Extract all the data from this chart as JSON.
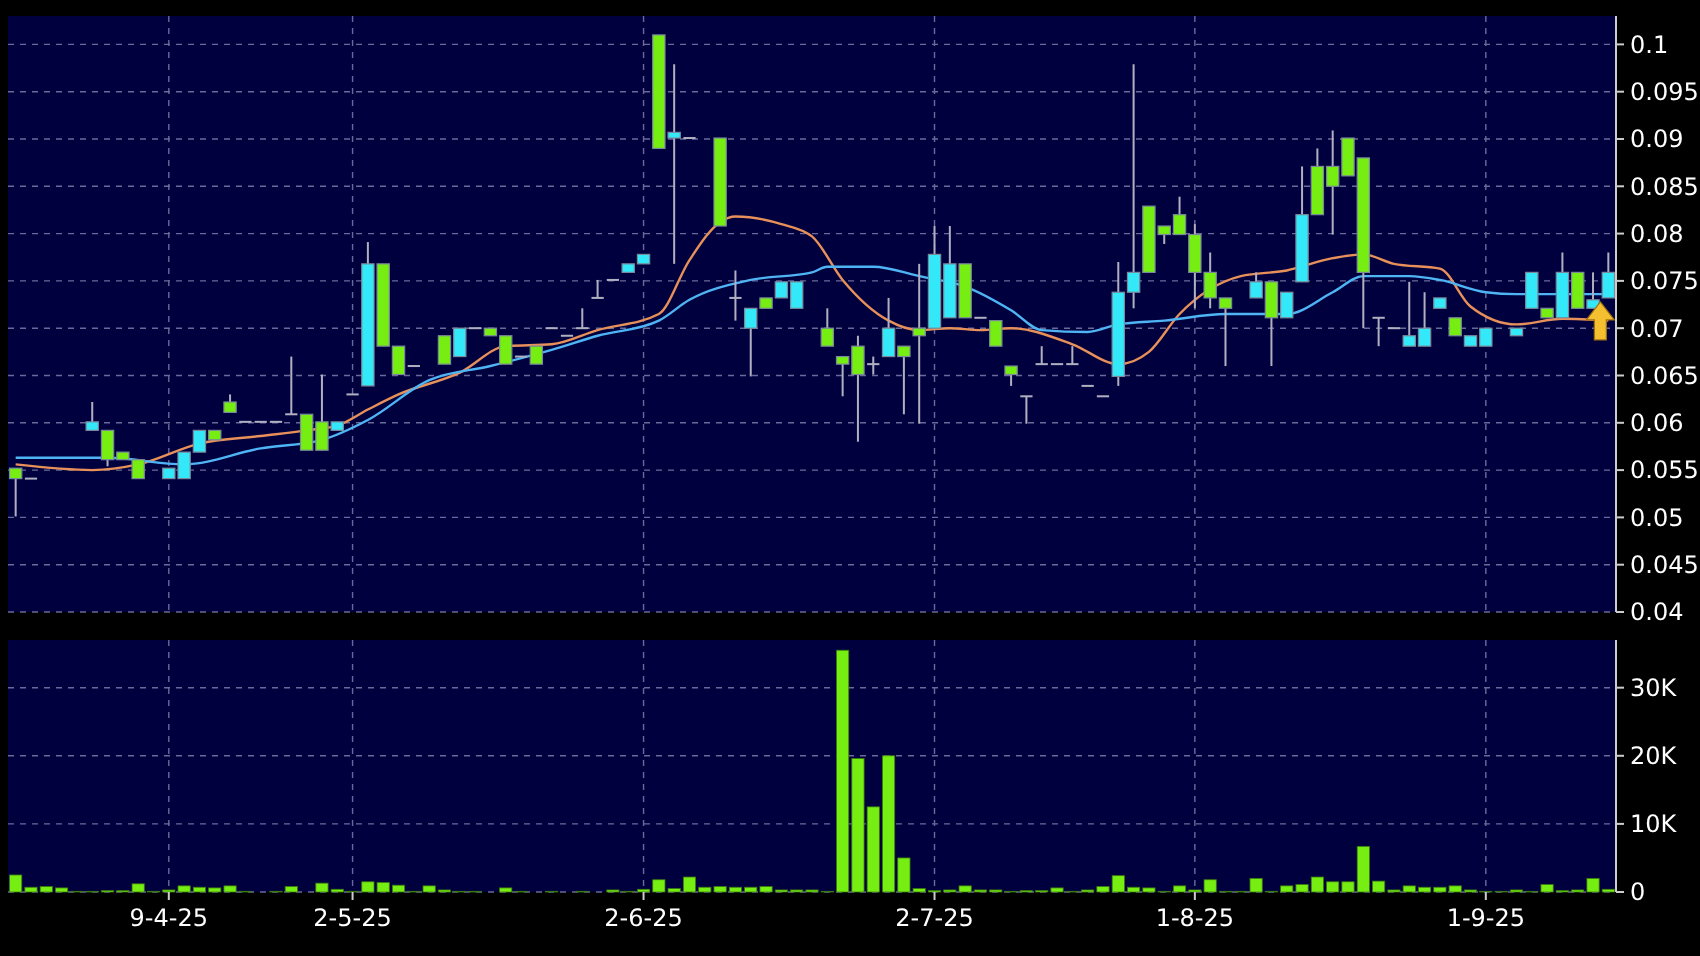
{
  "chart_data": [
    {
      "type": "candlestick",
      "tick_labels": "y",
      "grid": true,
      "colors": [
        "#77ee11",
        "#b0b0c0",
        null,
        null,
        null,
        "#33e8f8",
        "#77ee11",
        "#77ee11",
        "#77ee11",
        null,
        "#33e8f8",
        "#33e8f8",
        "#33e8f8",
        "#77ee11",
        "#77ee11",
        "#b0b0c0",
        "#b0b0c0",
        "#b0b0c0",
        "#b0b0c0",
        "#77ee11",
        "#77ee11",
        "#33e8f8",
        "#b0b0c0",
        "#33e8f8",
        "#77ee11",
        "#77ee11",
        "#b0b0c0",
        null,
        "#77ee11",
        "#33e8f8",
        "#b0b0c0",
        "#77ee11",
        "#77ee11",
        "#b0b0c0",
        "#77ee11",
        "#b0b0c0",
        "#b0b0c0",
        "#b0b0c0",
        "#b0b0c0",
        "#b0b0c0",
        "#33e8f8",
        "#33e8f8",
        "#77ee11",
        "#33e8f8",
        "#b0b0c0",
        null,
        "#77ee11",
        "#b0b0c0",
        "#33e8f8",
        "#77ee11",
        "#33e8f8",
        "#33e8f8",
        null,
        "#77ee11",
        "#77ee11",
        "#77ee11",
        "#b0b0c0",
        "#33e8f8",
        "#77ee11",
        "#77ee11",
        "#33e8f8",
        "#33e8f8",
        "#77ee11",
        "#b0b0c0",
        "#77ee11",
        "#77ee11",
        "#b0b0c0",
        "#b0b0c0",
        "#b0b0c0",
        "#b0b0c0",
        "#b0b0c0",
        "#b0b0c0",
        "#33e8f8",
        "#33e8f8",
        "#77ee11",
        "#77ee11",
        "#77ee11",
        "#77ee11",
        "#77ee11",
        "#77ee11",
        null,
        "#33e8f8",
        "#77ee11",
        "#33e8f8",
        "#33e8f8",
        "#77ee11",
        "#77ee11",
        "#77ee11",
        "#77ee11",
        "#b0b0c0",
        "#b0b0c0",
        "#33e8f8",
        "#33e8f8",
        "#33e8f8",
        "#77ee11",
        "#33e8f8",
        "#33e8f8",
        null,
        "#33e8f8",
        "#33e8f8",
        "#77ee11",
        "#33e8f8",
        "#77ee11",
        "#33e8f8",
        "#33e8f8"
      ],
      "categories": [
        null,
        null,
        null,
        null,
        null,
        null,
        null,
        null,
        null,
        null,
        null,
        null,
        null,
        null,
        null,
        null,
        null,
        null,
        null,
        null,
        null,
        null,
        null,
        null,
        null,
        null,
        null,
        null,
        null,
        null,
        null,
        null,
        null,
        null,
        null,
        null,
        null,
        null,
        null,
        null,
        null,
        null,
        null,
        null,
        null,
        null,
        null,
        null,
        null,
        null,
        null,
        null,
        null,
        null,
        null,
        null,
        null,
        null,
        null,
        null,
        null,
        null,
        null,
        null,
        null,
        null,
        null,
        null,
        null,
        null,
        null,
        null,
        null,
        null,
        null,
        null,
        null,
        null,
        null,
        null,
        null,
        null,
        null,
        null,
        null,
        null,
        null,
        null,
        null,
        null,
        null,
        null,
        null,
        null,
        null,
        null,
        null,
        null,
        null,
        null,
        null,
        null,
        null,
        null,
        null
      ],
      "ylim": [
        0.04,
        0.103
      ],
      "yticks": [
        0.04,
        0.045,
        0.05,
        0.055,
        0.06,
        0.065,
        0.07,
        0.075,
        0.08,
        0.085,
        0.09,
        0.095,
        0.1
      ],
      "ohlc": [
        [
          0.0552,
          0.0552,
          0.0501,
          0.0541
        ],
        [
          0.0541,
          0.0541,
          0.0541,
          0.0541
        ],
        null,
        null,
        null,
        [
          0.0592,
          0.0622,
          0.0592,
          0.0601
        ],
        [
          0.0592,
          0.0592,
          0.0554,
          0.0561
        ],
        [
          0.0569,
          0.0569,
          0.0561,
          0.0561
        ],
        [
          0.0561,
          0.0561,
          0.0541,
          0.0541
        ],
        null,
        [
          0.0541,
          0.0552,
          0.0541,
          0.0552
        ],
        [
          0.0541,
          0.0569,
          0.0541,
          0.0569
        ],
        [
          0.0569,
          0.0592,
          0.0569,
          0.0592
        ],
        [
          0.0592,
          0.0592,
          0.0582,
          0.0582
        ],
        [
          0.0622,
          0.063,
          0.0611,
          0.0611
        ],
        [
          0.0601,
          0.0601,
          0.0601,
          0.0601
        ],
        [
          0.0601,
          0.0601,
          0.0601,
          0.0601
        ],
        [
          0.0601,
          0.0601,
          0.0601,
          0.0601
        ],
        [
          0.0609,
          0.067,
          0.0609,
          0.0609
        ],
        [
          0.0609,
          0.0609,
          0.0571,
          0.0571
        ],
        [
          0.0601,
          0.0651,
          0.0571,
          0.0571
        ],
        [
          0.0592,
          0.0601,
          0.0592,
          0.0601
        ],
        [
          0.063,
          0.063,
          0.063,
          0.063
        ],
        [
          0.0639,
          0.0791,
          0.0639,
          0.0768
        ],
        [
          0.0768,
          0.0768,
          0.0681,
          0.0681
        ],
        [
          0.0681,
          0.0681,
          0.0651,
          0.0651
        ],
        [
          0.066,
          0.066,
          0.066,
          0.066
        ],
        null,
        [
          0.0692,
          0.0692,
          0.0662,
          0.0662
        ],
        [
          0.067,
          0.07,
          0.067,
          0.07
        ],
        [
          0.07,
          0.07,
          0.07,
          0.07
        ],
        [
          0.07,
          0.07,
          0.0692,
          0.0692
        ],
        [
          0.0692,
          0.0692,
          0.0662,
          0.0662
        ],
        [
          0.067,
          0.067,
          0.067,
          0.067
        ],
        [
          0.0681,
          0.0681,
          0.0662,
          0.0662
        ],
        [
          0.07,
          0.07,
          0.07,
          0.07
        ],
        [
          0.0692,
          0.0692,
          0.0692,
          0.0692
        ],
        [
          0.07,
          0.0721,
          0.07,
          0.07
        ],
        [
          0.0732,
          0.0751,
          0.0732,
          0.0732
        ],
        [
          0.0751,
          0.0751,
          0.0751,
          0.0751
        ],
        [
          0.0759,
          0.0768,
          0.0759,
          0.0768
        ],
        [
          0.0768,
          0.0778,
          0.0768,
          0.0778
        ],
        [
          0.101,
          0.101,
          0.089,
          0.089
        ],
        [
          0.0901,
          0.0979,
          0.0768,
          0.0907
        ],
        [
          0.0901,
          0.0901,
          0.0901,
          0.0901
        ],
        null,
        [
          0.0901,
          0.0901,
          0.0808,
          0.0808
        ],
        [
          0.0732,
          0.0761,
          0.0708,
          0.0732
        ],
        [
          0.07,
          0.0721,
          0.0649,
          0.0721
        ],
        [
          0.0732,
          0.0732,
          0.0721,
          0.0721
        ],
        [
          0.0732,
          0.0749,
          0.0732,
          0.0749
        ],
        [
          0.0721,
          0.0749,
          0.0721,
          0.0749
        ],
        null,
        [
          0.07,
          0.0721,
          0.0681,
          0.0681
        ],
        [
          0.067,
          0.067,
          0.0628,
          0.0662
        ],
        [
          0.0681,
          0.0692,
          0.058,
          0.0651
        ],
        [
          0.0662,
          0.067,
          0.0651,
          0.0662
        ],
        [
          0.067,
          0.0732,
          0.067,
          0.07
        ],
        [
          0.0681,
          0.0681,
          0.0609,
          0.067
        ],
        [
          0.07,
          0.0768,
          0.0599,
          0.0692
        ],
        [
          0.07,
          0.0808,
          0.07,
          0.0778
        ],
        [
          0.0711,
          0.0808,
          0.0711,
          0.0768
        ],
        [
          0.0768,
          0.0768,
          0.0711,
          0.0711
        ],
        [
          0.0711,
          0.0711,
          0.0711,
          0.0711
        ],
        [
          0.0708,
          0.0708,
          0.0681,
          0.0681
        ],
        [
          0.066,
          0.066,
          0.0639,
          0.0651
        ],
        [
          0.0628,
          0.0628,
          0.0599,
          0.0628
        ],
        [
          0.0662,
          0.0681,
          0.0662,
          0.0662
        ],
        [
          0.0662,
          0.0662,
          0.0662,
          0.0662
        ],
        [
          0.0662,
          0.0681,
          0.0662,
          0.0662
        ],
        [
          0.0639,
          0.0639,
          0.0639,
          0.0639
        ],
        [
          0.0628,
          0.0628,
          0.0628,
          0.0628
        ],
        [
          0.0649,
          0.077,
          0.0639,
          0.0738
        ],
        [
          0.0738,
          0.0979,
          0.0721,
          0.0759
        ],
        [
          0.0829,
          0.0829,
          0.0759,
          0.0759
        ],
        [
          0.0808,
          0.0808,
          0.0789,
          0.0799
        ],
        [
          0.082,
          0.0839,
          0.0799,
          0.0799
        ],
        [
          0.0799,
          0.081,
          0.0721,
          0.0759
        ],
        [
          0.0759,
          0.078,
          0.0721,
          0.0732
        ],
        [
          0.0732,
          0.0732,
          0.066,
          0.0721
        ],
        null,
        [
          0.0732,
          0.0759,
          0.0732,
          0.0749
        ],
        [
          0.0749,
          0.0749,
          0.066,
          0.0711
        ],
        [
          0.0711,
          0.0738,
          0.0711,
          0.0738
        ],
        [
          0.0749,
          0.0871,
          0.0749,
          0.082
        ],
        [
          0.0871,
          0.089,
          0.082,
          0.082
        ],
        [
          0.0871,
          0.0909,
          0.0799,
          0.085
        ],
        [
          0.0901,
          0.0901,
          0.0861,
          0.0861
        ],
        [
          0.088,
          0.088,
          0.07,
          0.0759
        ],
        [
          0.0711,
          0.0711,
          0.0681,
          0.0711
        ],
        [
          0.07,
          0.07,
          0.07,
          0.07
        ],
        [
          0.0681,
          0.0749,
          0.0681,
          0.0692
        ],
        [
          0.0681,
          0.0738,
          0.0681,
          0.07
        ],
        [
          0.0721,
          0.0732,
          0.0721,
          0.0732
        ],
        [
          0.0711,
          0.0711,
          0.0692,
          0.0692
        ],
        [
          0.0681,
          0.0692,
          0.0681,
          0.0692
        ],
        [
          0.0681,
          0.07,
          0.0681,
          0.07
        ],
        null,
        [
          0.0692,
          0.07,
          0.0692,
          0.07
        ],
        [
          0.0721,
          0.0759,
          0.0721,
          0.0759
        ],
        [
          0.0721,
          0.0721,
          0.0711,
          0.0711
        ],
        [
          0.0711,
          0.078,
          0.0711,
          0.0759
        ],
        [
          0.0759,
          0.0759,
          0.0721,
          0.0721
        ],
        [
          0.0721,
          0.0759,
          0.0721,
          0.073
        ],
        [
          0.0732,
          0.078,
          0.0732,
          0.0759
        ]
      ],
      "series": [
        {
          "type": "line",
          "color": "#e8905a",
          "values": [
            0.0556,
            null,
            null,
            null,
            null,
            0.055,
            null,
            null,
            0.0556,
            null,
            null,
            null,
            0.0578,
            null,
            null,
            null,
            0.0586,
            null,
            null,
            0.0592,
            null,
            0.0597,
            null,
            0.0614,
            null,
            0.063,
            null,
            null,
            null,
            0.0653,
            null,
            null,
            0.0681,
            null,
            null,
            0.0683,
            null,
            null,
            0.0698,
            null,
            null,
            null,
            0.0715,
            null,
            0.0772,
            null,
            0.0812,
            0.0818,
            null,
            null,
            0.081,
            null,
            0.0797,
            null,
            0.0751,
            null,
            null,
            0.0708,
            null,
            0.0698,
            null,
            0.07,
            null,
            0.0698,
            null,
            0.07,
            null,
            null,
            null,
            0.0683,
            null,
            null,
            0.0662,
            null,
            0.0675,
            null,
            0.0715,
            null,
            null,
            null,
            0.0755,
            null,
            null,
            0.0761,
            null,
            null,
            0.0774,
            null,
            0.0778,
            null,
            0.0768,
            null,
            null,
            0.0763,
            null,
            0.0723,
            null,
            null,
            0.0704,
            null,
            null,
            0.071,
            null,
            null,
            0.0708
          ]
        },
        {
          "type": "line",
          "color": "#4fb4f4",
          "values": [
            0.0563,
            null,
            null,
            null,
            null,
            null,
            0.0563,
            null,
            null,
            null,
            null,
            0.0556,
            null,
            null,
            null,
            null,
            0.0573,
            null,
            null,
            null,
            0.0582,
            null,
            null,
            0.0603,
            null,
            null,
            null,
            0.0645,
            null,
            null,
            null,
            0.066,
            null,
            null,
            null,
            0.0677,
            null,
            null,
            0.0692,
            null,
            null,
            null,
            0.0708,
            null,
            0.073,
            null,
            null,
            null,
            0.0751,
            null,
            null,
            null,
            0.0759,
            0.0765,
            null,
            null,
            0.0765,
            null,
            null,
            0.0755,
            null,
            null,
            0.0744,
            null,
            null,
            0.0719,
            null,
            0.0698,
            null,
            null,
            0.0696,
            null,
            0.0704,
            null,
            null,
            0.0708,
            null,
            null,
            null,
            0.0715,
            null,
            null,
            null,
            0.0715,
            null,
            null,
            0.0738,
            null,
            0.0755,
            null,
            null,
            0.0755,
            null,
            0.0751,
            null,
            null,
            0.0738,
            null,
            0.0736,
            null,
            null,
            null,
            null,
            null,
            0.0736
          ]
        }
      ]
    },
    {
      "type": "bar",
      "grid": true,
      "color": "#77ee11",
      "categories": [
        null,
        null,
        null,
        null,
        null,
        null,
        null,
        null,
        null,
        null,
        "9-4-25",
        null,
        null,
        null,
        null,
        null,
        null,
        null,
        null,
        null,
        null,
        null,
        "2-5-25",
        null,
        null,
        null,
        null,
        null,
        null,
        null,
        null,
        null,
        null,
        null,
        null,
        null,
        null,
        null,
        null,
        null,
        null,
        "2-6-25",
        null,
        null,
        null,
        null,
        null,
        null,
        null,
        null,
        null,
        null,
        null,
        null,
        null,
        null,
        null,
        null,
        null,
        null,
        "2-7-25",
        null,
        null,
        null,
        null,
        null,
        null,
        null,
        null,
        null,
        null,
        null,
        null,
        null,
        null,
        null,
        null,
        "1-8-25",
        null,
        null,
        null,
        null,
        null,
        null,
        null,
        null,
        null,
        null,
        null,
        null,
        null,
        null,
        null,
        null,
        null,
        null,
        "1-9-25",
        null,
        null,
        null,
        null,
        null,
        null,
        null,
        null
      ],
      "ylim": [
        0,
        37000
      ],
      "yticks": [
        0,
        {
          "value": 10000,
          "label": "10K"
        },
        {
          "value": 20000,
          "label": "20K"
        },
        {
          "value": 30000,
          "label": "30K"
        }
      ],
      "values": [
        2500,
        700,
        800,
        600,
        100,
        100,
        200,
        200,
        1200,
        100,
        300,
        900,
        700,
        600,
        900,
        100,
        0,
        100,
        800,
        0,
        1300,
        400,
        100,
        1500,
        1400,
        1000,
        100,
        900,
        300,
        100,
        100,
        0,
        600,
        100,
        0,
        100,
        0,
        100,
        0,
        300,
        100,
        400,
        1800,
        500,
        2200,
        700,
        800,
        700,
        700,
        800,
        300,
        300,
        300,
        100,
        35500,
        19600,
        12500,
        20000,
        5000,
        500,
        200,
        300,
        900,
        300,
        300,
        100,
        200,
        200,
        600,
        100,
        300,
        800,
        2400,
        700,
        600,
        100,
        900,
        300,
        1800,
        100,
        100,
        2000,
        100,
        900,
        1100,
        2200,
        1500,
        1500,
        6700,
        1600,
        300,
        900,
        700,
        700,
        900,
        300,
        100,
        100,
        300,
        100,
        1100,
        200,
        300,
        2000,
        400
      ]
    }
  ]
}
